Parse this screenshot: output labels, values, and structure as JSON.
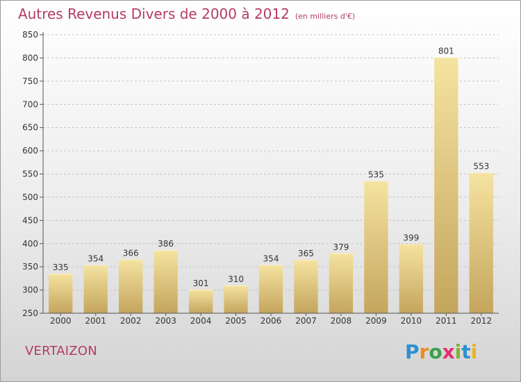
{
  "header": {
    "title": "Autres Revenus Divers de 2000 à 2012",
    "unit": "(en milliers d'€)"
  },
  "footer": {
    "commune": "VERTAIZON",
    "logo": "Proxiti"
  },
  "colors": {
    "title": "#b43b63",
    "bar_light": "#f3df98",
    "bar_dark": "#c6a85f",
    "grid": "#bdbdbd"
  },
  "chart_data": {
    "type": "bar",
    "title": "Autres Revenus Divers de 2000 à 2012",
    "subtitle": "(en milliers d'€)",
    "xlabel": "",
    "ylabel": "",
    "categories": [
      "2000",
      "2001",
      "2002",
      "2003",
      "2004",
      "2005",
      "2006",
      "2007",
      "2008",
      "2009",
      "2010",
      "2011",
      "2012"
    ],
    "values": [
      335,
      354,
      366,
      386,
      301,
      310,
      354,
      365,
      379,
      535,
      399,
      801,
      553
    ],
    "ylim": [
      250,
      850
    ],
    "yticks": [
      250,
      300,
      350,
      400,
      450,
      500,
      550,
      600,
      650,
      700,
      750,
      800,
      850
    ],
    "grid": "horizontal dashed",
    "legend": "none"
  }
}
